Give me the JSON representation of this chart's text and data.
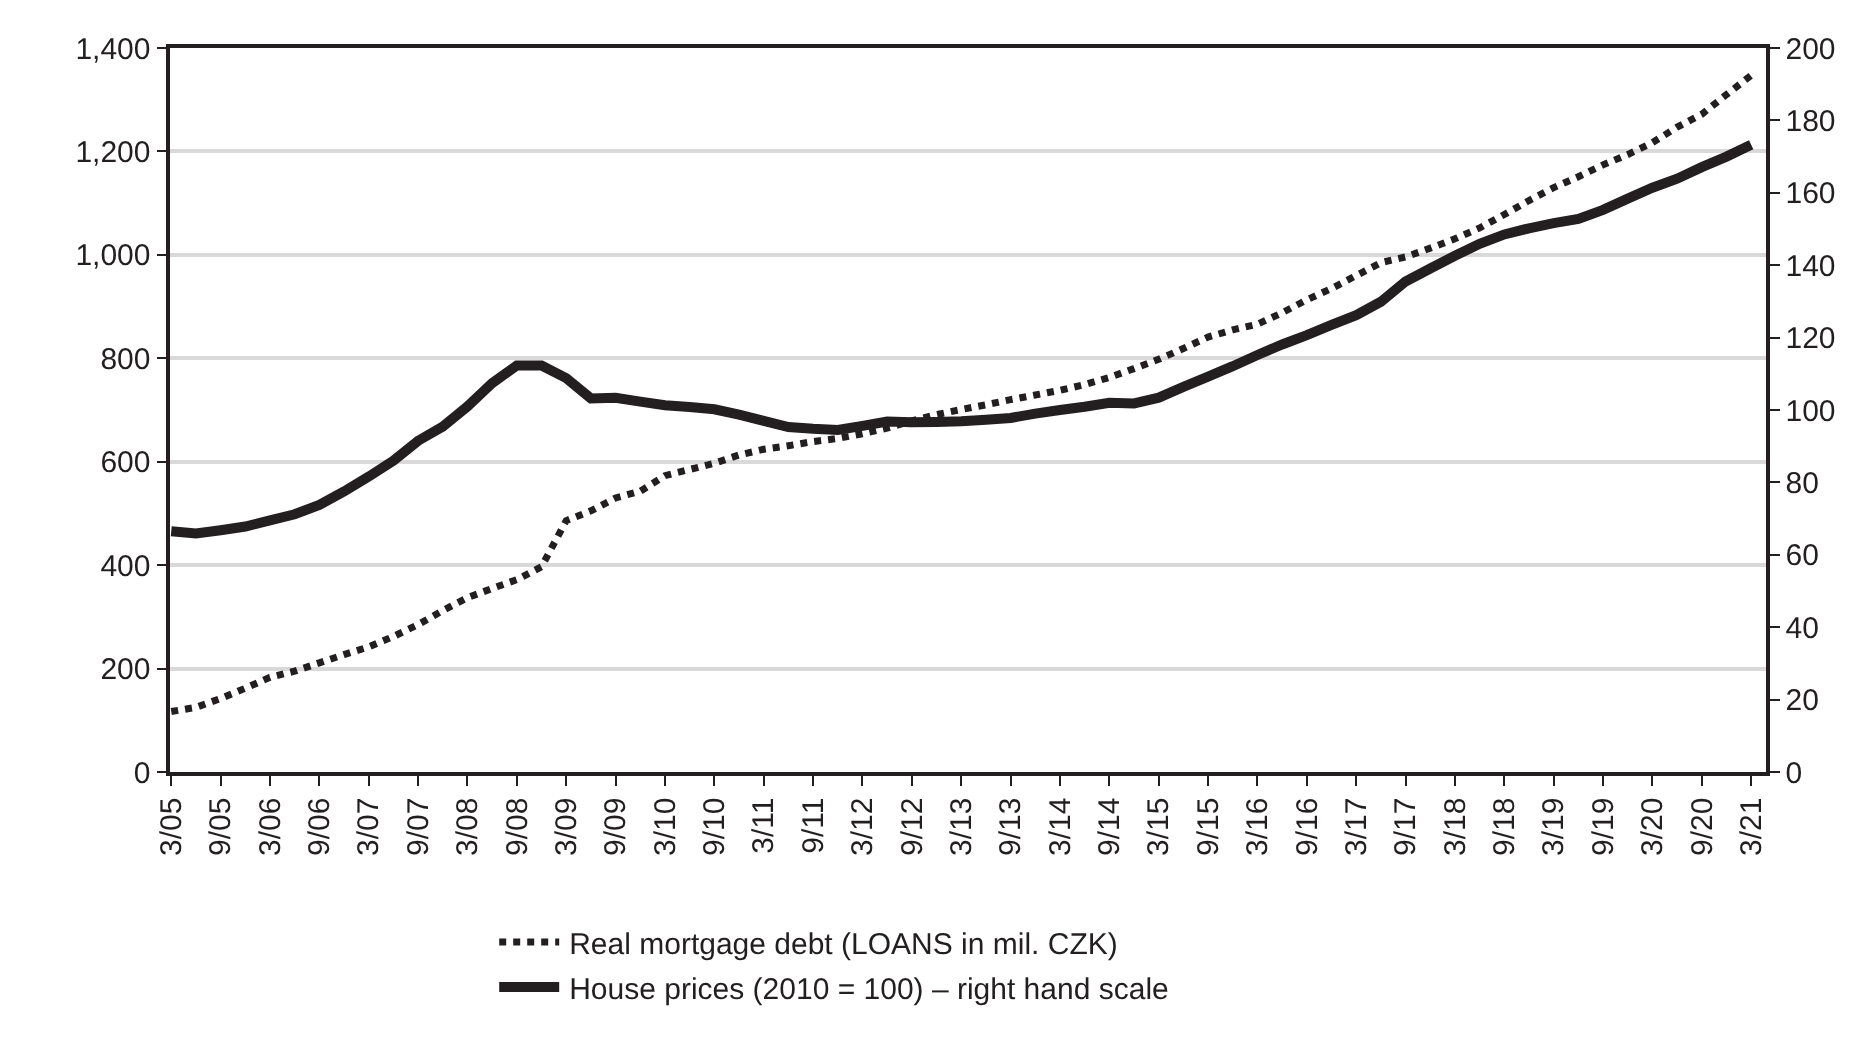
{
  "chart_data": {
    "type": "line",
    "categories": [
      "3/05",
      null,
      "9/05",
      null,
      "3/06",
      null,
      "9/06",
      null,
      "3/07",
      null,
      "9/07",
      null,
      "3/08",
      null,
      "9/08",
      null,
      "3/09",
      null,
      "9/09",
      null,
      "3/10",
      null,
      "9/10",
      null,
      "3/11",
      null,
      "9/11",
      null,
      "3/12",
      null,
      "9/12",
      null,
      "3/13",
      null,
      "9/13",
      null,
      "3/14",
      null,
      "9/14",
      null,
      "3/15",
      null,
      "9/15",
      null,
      "3/16",
      null,
      "9/16",
      null,
      "3/17",
      null,
      "9/17",
      null,
      "3/18",
      null,
      "9/18",
      null,
      "3/19",
      null,
      "9/19",
      null,
      "3/20",
      null,
      "9/20",
      null,
      "3/21"
    ],
    "series": [
      {
        "name": "Real mortgage debt (LOANS in mil. CZK)",
        "color": "#231f20",
        "line_style": "dotted",
        "values": [
          117,
          125,
          142,
          162,
          183,
          195,
          211,
          227,
          242,
          262,
          285,
          312,
          337,
          355,
          372,
          397,
          486,
          505,
          530,
          543,
          573,
          585,
          597,
          613,
          624,
          631,
          639,
          645,
          654,
          665,
          679,
          691,
          701,
          710,
          720,
          729,
          738,
          749,
          763,
          780,
          798,
          819,
          841,
          855,
          866,
          888,
          913,
          935,
          960,
          985,
          996,
          1013,
          1031,
          1052,
          1078,
          1105,
          1130,
          1151,
          1174,
          1194,
          1217,
          1247,
          1272,
          1310,
          1347
        ]
      },
      {
        "name": "House prices (2010 = 100) – right hand scale",
        "color": "#231f20",
        "line_style": "solid",
        "axis": "y2",
        "values": [
          66.5,
          65.9,
          66.8,
          67.8,
          69.5,
          71.2,
          73.8,
          77.5,
          81.6,
          86.0,
          91.5,
          95.4,
          101.0,
          107.4,
          112.3,
          112.3,
          108.8,
          103.2,
          103.4,
          102.3,
          101.3,
          100.8,
          100.2,
          98.7,
          97.0,
          95.3,
          94.8,
          94.5,
          95.6,
          96.8,
          96.6,
          96.7,
          96.9,
          97.3,
          97.8,
          99.0,
          100.0,
          100.9,
          102.0,
          101.8,
          103.4,
          106.4,
          109.2,
          112.1,
          115.2,
          118.1,
          120.7,
          123.5,
          126.2,
          129.9,
          135.5,
          139.1,
          142.6,
          145.9,
          148.5,
          150.2,
          151.6,
          152.8,
          155.3,
          158.4,
          161.4,
          163.9,
          167.1,
          170.0,
          173.3
        ]
      }
    ],
    "ylim": [
      0,
      1400
    ],
    "yticks": [
      0,
      200,
      400,
      600,
      800,
      {
        "value": 1000,
        "label": "1,000"
      },
      {
        "value": 1200,
        "label": "1,200"
      },
      {
        "value": 1400,
        "label": "1,400"
      }
    ],
    "y2lim": [
      0,
      200
    ],
    "y2ticks": [
      0,
      20,
      40,
      60,
      80,
      100,
      120,
      140,
      160,
      180,
      200
    ],
    "grid": "y",
    "legend": "bottom",
    "marker": "none"
  }
}
